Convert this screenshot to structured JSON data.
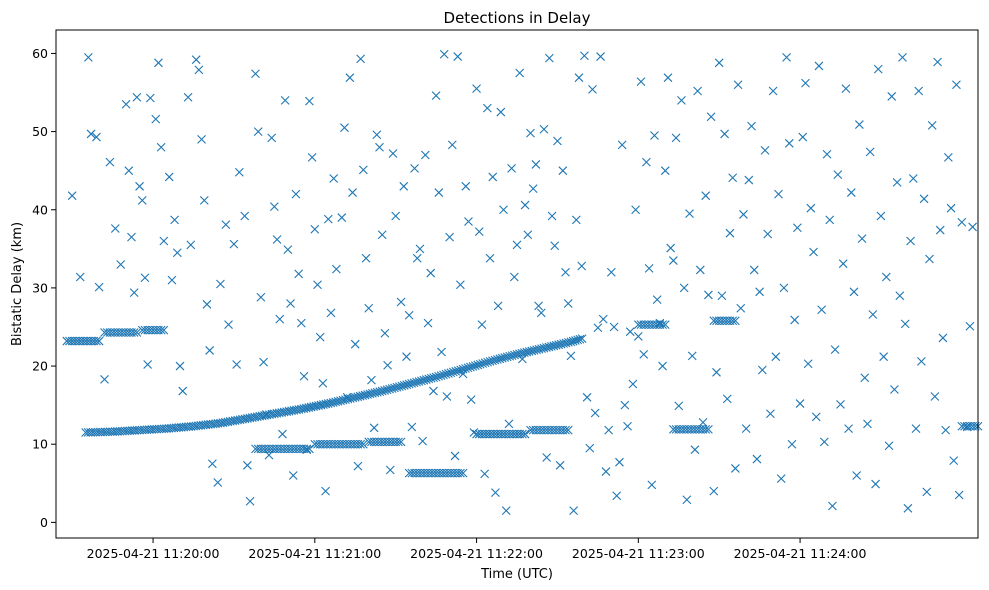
{
  "chart_data": {
    "type": "scatter",
    "title": "Detections in Delay",
    "xlabel": "Time (UTC)",
    "ylabel": "Bistatic Delay (km)",
    "marker": "x",
    "color": "#1f77b4",
    "grid": false,
    "x_unit": "seconds after 2025-04-21 11:19:00 UTC",
    "xlim": [
      24,
      366
    ],
    "ylim": [
      -2,
      63
    ],
    "x_ticks": [
      {
        "value": 60,
        "label": "2025-04-21 11:20:00"
      },
      {
        "value": 120,
        "label": "2025-04-21 11:21:00"
      },
      {
        "value": 180,
        "label": "2025-04-21 11:22:00"
      },
      {
        "value": 240,
        "label": "2025-04-21 11:23:00"
      },
      {
        "value": 300,
        "label": "2025-04-21 11:24:00"
      }
    ],
    "y_ticks": [
      0,
      10,
      20,
      30,
      40,
      50,
      60
    ],
    "track": {
      "description": "dense detection track",
      "points": [
        [
          35,
          11.5
        ],
        [
          45,
          11.6
        ],
        [
          55,
          11.8
        ],
        [
          65,
          12.0
        ],
        [
          75,
          12.3
        ],
        [
          85,
          12.7
        ],
        [
          95,
          13.3
        ],
        [
          105,
          13.9
        ],
        [
          115,
          14.5
        ],
        [
          125,
          15.2
        ],
        [
          135,
          16.0
        ],
        [
          145,
          16.8
        ],
        [
          155,
          17.7
        ],
        [
          165,
          18.6
        ],
        [
          175,
          19.6
        ],
        [
          185,
          20.6
        ],
        [
          195,
          21.5
        ],
        [
          205,
          22.3
        ],
        [
          215,
          23.1
        ],
        [
          220,
          23.6
        ]
      ]
    },
    "track_segments": [
      {
        "x": [
          28,
          40
        ],
        "y": 23.2
      },
      {
        "x": [
          42,
          54
        ],
        "y": 24.3
      },
      {
        "x": [
          56,
          64
        ],
        "y": 24.6
      },
      {
        "x": [
          98,
          118
        ],
        "y": 9.4
      },
      {
        "x": [
          120,
          138
        ],
        "y": 10.0
      },
      {
        "x": [
          140,
          152
        ],
        "y": 10.3
      },
      {
        "x": [
          155,
          175
        ],
        "y": 6.3
      },
      {
        "x": [
          180,
          198
        ],
        "y": 11.3
      },
      {
        "x": [
          200,
          214
        ],
        "y": 11.8
      },
      {
        "x": [
          240,
          250
        ],
        "y": 25.3
      },
      {
        "x": [
          253,
          266
        ],
        "y": 11.9
      },
      {
        "x": [
          268,
          276
        ],
        "y": 25.8
      },
      {
        "x": [
          360,
          366
        ],
        "y": 12.3
      }
    ],
    "scatter_points": [
      [
        30,
        41.8
      ],
      [
        33,
        31.4
      ],
      [
        36,
        59.5
      ],
      [
        37,
        49.7
      ],
      [
        39,
        49.3
      ],
      [
        40,
        30.1
      ],
      [
        42,
        18.3
      ],
      [
        44,
        46.1
      ],
      [
        46,
        37.6
      ],
      [
        48,
        33.0
      ],
      [
        50,
        53.5
      ],
      [
        51,
        45.0
      ],
      [
        52,
        36.5
      ],
      [
        53,
        29.4
      ],
      [
        54,
        54.4
      ],
      [
        55,
        43.0
      ],
      [
        56,
        41.2
      ],
      [
        57,
        31.3
      ],
      [
        58,
        20.2
      ],
      [
        59,
        54.3
      ],
      [
        61,
        51.6
      ],
      [
        62,
        58.8
      ],
      [
        63,
        48.0
      ],
      [
        64,
        36.0
      ],
      [
        66,
        44.2
      ],
      [
        67,
        31.0
      ],
      [
        68,
        38.7
      ],
      [
        69,
        34.5
      ],
      [
        70,
        20.0
      ],
      [
        71,
        16.8
      ],
      [
        73,
        54.4
      ],
      [
        74,
        35.5
      ],
      [
        76,
        59.2
      ],
      [
        77,
        57.9
      ],
      [
        78,
        49.0
      ],
      [
        79,
        41.2
      ],
      [
        80,
        27.9
      ],
      [
        81,
        22.0
      ],
      [
        82,
        7.5
      ],
      [
        84,
        5.1
      ],
      [
        85,
        30.5
      ],
      [
        87,
        38.1
      ],
      [
        88,
        25.3
      ],
      [
        90,
        35.6
      ],
      [
        91,
        20.2
      ],
      [
        92,
        44.8
      ],
      [
        94,
        39.2
      ],
      [
        95,
        7.3
      ],
      [
        96,
        2.7
      ],
      [
        98,
        57.4
      ],
      [
        99,
        50.0
      ],
      [
        100,
        28.8
      ],
      [
        101,
        20.5
      ],
      [
        102,
        13.8
      ],
      [
        103,
        8.6
      ],
      [
        104,
        49.2
      ],
      [
        105,
        40.4
      ],
      [
        106,
        36.2
      ],
      [
        107,
        26.0
      ],
      [
        108,
        11.3
      ],
      [
        109,
        54.0
      ],
      [
        110,
        34.9
      ],
      [
        111,
        28.0
      ],
      [
        112,
        6.0
      ],
      [
        113,
        42.0
      ],
      [
        114,
        31.8
      ],
      [
        115,
        25.5
      ],
      [
        116,
        18.7
      ],
      [
        117,
        9.3
      ],
      [
        118,
        53.9
      ],
      [
        119,
        46.7
      ],
      [
        120,
        37.5
      ],
      [
        121,
        30.4
      ],
      [
        122,
        23.7
      ],
      [
        123,
        17.8
      ],
      [
        124,
        4.0
      ],
      [
        125,
        38.8
      ],
      [
        126,
        26.8
      ],
      [
        127,
        44.0
      ],
      [
        128,
        32.4
      ],
      [
        130,
        39.0
      ],
      [
        131,
        50.5
      ],
      [
        132,
        16.0
      ],
      [
        133,
        56.9
      ],
      [
        134,
        42.2
      ],
      [
        135,
        22.8
      ],
      [
        136,
        7.2
      ],
      [
        137,
        59.3
      ],
      [
        138,
        45.1
      ],
      [
        139,
        33.8
      ],
      [
        140,
        27.4
      ],
      [
        141,
        18.2
      ],
      [
        142,
        12.1
      ],
      [
        143,
        49.6
      ],
      [
        144,
        48.0
      ],
      [
        145,
        36.8
      ],
      [
        146,
        24.2
      ],
      [
        147,
        20.1
      ],
      [
        148,
        6.7
      ],
      [
        149,
        47.2
      ],
      [
        150,
        39.2
      ],
      [
        152,
        28.2
      ],
      [
        153,
        43.0
      ],
      [
        154,
        21.2
      ],
      [
        155,
        26.5
      ],
      [
        156,
        12.2
      ],
      [
        157,
        45.3
      ],
      [
        158,
        33.8
      ],
      [
        159,
        35.0
      ],
      [
        160,
        10.4
      ],
      [
        161,
        47.0
      ],
      [
        162,
        25.5
      ],
      [
        163,
        31.9
      ],
      [
        164,
        16.8
      ],
      [
        165,
        54.6
      ],
      [
        166,
        42.2
      ],
      [
        167,
        21.8
      ],
      [
        168,
        59.9
      ],
      [
        169,
        16.1
      ],
      [
        170,
        36.5
      ],
      [
        171,
        48.3
      ],
      [
        172,
        8.5
      ],
      [
        173,
        59.6
      ],
      [
        174,
        30.4
      ],
      [
        175,
        19.0
      ],
      [
        176,
        43.0
      ],
      [
        177,
        38.5
      ],
      [
        178,
        15.7
      ],
      [
        179,
        11.5
      ],
      [
        180,
        55.5
      ],
      [
        181,
        37.2
      ],
      [
        182,
        25.3
      ],
      [
        183,
        6.2
      ],
      [
        184,
        53.0
      ],
      [
        185,
        33.8
      ],
      [
        186,
        44.2
      ],
      [
        187,
        3.8
      ],
      [
        188,
        27.7
      ],
      [
        189,
        52.5
      ],
      [
        190,
        40.0
      ],
      [
        191,
        1.5
      ],
      [
        192,
        12.6
      ],
      [
        193,
        45.3
      ],
      [
        194,
        31.4
      ],
      [
        195,
        35.5
      ],
      [
        196,
        57.5
      ],
      [
        197,
        20.9
      ],
      [
        198,
        40.6
      ],
      [
        199,
        36.8
      ],
      [
        200,
        49.8
      ],
      [
        201,
        42.7
      ],
      [
        202,
        45.8
      ],
      [
        203,
        27.7
      ],
      [
        204,
        26.8
      ],
      [
        205,
        50.3
      ],
      [
        206,
        8.3
      ],
      [
        207,
        59.4
      ],
      [
        208,
        39.2
      ],
      [
        209,
        35.4
      ],
      [
        210,
        48.8
      ],
      [
        211,
        7.3
      ],
      [
        212,
        45.0
      ],
      [
        213,
        32.0
      ],
      [
        214,
        28.0
      ],
      [
        215,
        21.3
      ],
      [
        216,
        1.5
      ],
      [
        217,
        38.7
      ],
      [
        218,
        56.9
      ],
      [
        219,
        32.8
      ],
      [
        220,
        59.7
      ],
      [
        221,
        16.0
      ],
      [
        222,
        9.5
      ],
      [
        223,
        55.4
      ],
      [
        224,
        14.0
      ],
      [
        225,
        24.9
      ],
      [
        226,
        59.6
      ],
      [
        227,
        26.0
      ],
      [
        228,
        6.5
      ],
      [
        229,
        11.8
      ],
      [
        230,
        32.0
      ],
      [
        231,
        25.0
      ],
      [
        232,
        3.4
      ],
      [
        233,
        7.7
      ],
      [
        234,
        48.3
      ],
      [
        235,
        15.0
      ],
      [
        236,
        12.3
      ],
      [
        237,
        24.4
      ],
      [
        238,
        17.7
      ],
      [
        239,
        40.0
      ],
      [
        240,
        23.8
      ],
      [
        241,
        56.4
      ],
      [
        242,
        21.5
      ],
      [
        243,
        46.1
      ],
      [
        244,
        32.5
      ],
      [
        245,
        4.8
      ],
      [
        246,
        49.5
      ],
      [
        247,
        28.5
      ],
      [
        248,
        25.5
      ],
      [
        249,
        20.0
      ],
      [
        250,
        45.0
      ],
      [
        251,
        56.9
      ],
      [
        252,
        35.1
      ],
      [
        253,
        33.5
      ],
      [
        254,
        49.2
      ],
      [
        255,
        14.9
      ],
      [
        256,
        54.0
      ],
      [
        257,
        30.0
      ],
      [
        258,
        2.9
      ],
      [
        259,
        39.5
      ],
      [
        260,
        21.3
      ],
      [
        261,
        9.3
      ],
      [
        262,
        55.2
      ],
      [
        263,
        32.3
      ],
      [
        264,
        12.8
      ],
      [
        265,
        41.8
      ],
      [
        266,
        29.1
      ],
      [
        267,
        51.9
      ],
      [
        268,
        4.0
      ],
      [
        269,
        19.2
      ],
      [
        270,
        58.8
      ],
      [
        271,
        29.0
      ],
      [
        272,
        49.7
      ],
      [
        273,
        15.8
      ],
      [
        274,
        37.0
      ],
      [
        275,
        44.1
      ],
      [
        276,
        6.9
      ],
      [
        277,
        56.0
      ],
      [
        278,
        27.4
      ],
      [
        279,
        39.4
      ],
      [
        280,
        12.0
      ],
      [
        281,
        43.8
      ],
      [
        282,
        50.7
      ],
      [
        283,
        32.3
      ],
      [
        284,
        8.1
      ],
      [
        285,
        29.5
      ],
      [
        286,
        19.5
      ],
      [
        287,
        47.6
      ],
      [
        288,
        36.9
      ],
      [
        289,
        13.9
      ],
      [
        290,
        55.2
      ],
      [
        291,
        21.2
      ],
      [
        292,
        42.0
      ],
      [
        293,
        5.6
      ],
      [
        294,
        30.0
      ],
      [
        295,
        59.5
      ],
      [
        296,
        48.5
      ],
      [
        297,
        10.0
      ],
      [
        298,
        25.9
      ],
      [
        299,
        37.7
      ],
      [
        300,
        15.2
      ],
      [
        301,
        49.3
      ],
      [
        302,
        56.2
      ],
      [
        303,
        20.3
      ],
      [
        304,
        40.2
      ],
      [
        305,
        34.6
      ],
      [
        306,
        13.5
      ],
      [
        307,
        58.4
      ],
      [
        308,
        27.2
      ],
      [
        309,
        10.3
      ],
      [
        310,
        47.1
      ],
      [
        311,
        38.7
      ],
      [
        312,
        2.1
      ],
      [
        313,
        22.1
      ],
      [
        314,
        44.5
      ],
      [
        315,
        15.1
      ],
      [
        316,
        33.1
      ],
      [
        317,
        55.5
      ],
      [
        318,
        12.0
      ],
      [
        319,
        42.2
      ],
      [
        320,
        29.5
      ],
      [
        321,
        6.0
      ],
      [
        322,
        50.9
      ],
      [
        323,
        36.3
      ],
      [
        324,
        18.5
      ],
      [
        325,
        12.6
      ],
      [
        326,
        47.4
      ],
      [
        327,
        26.6
      ],
      [
        328,
        4.9
      ],
      [
        329,
        58.0
      ],
      [
        330,
        39.2
      ],
      [
        331,
        21.2
      ],
      [
        332,
        31.4
      ],
      [
        333,
        9.8
      ],
      [
        334,
        54.5
      ],
      [
        335,
        17.0
      ],
      [
        336,
        43.5
      ],
      [
        337,
        29.0
      ],
      [
        338,
        59.5
      ],
      [
        339,
        25.4
      ],
      [
        340,
        1.8
      ],
      [
        341,
        36.0
      ],
      [
        342,
        44.0
      ],
      [
        343,
        12.0
      ],
      [
        344,
        55.2
      ],
      [
        345,
        20.6
      ],
      [
        346,
        41.4
      ],
      [
        347,
        3.9
      ],
      [
        348,
        33.7
      ],
      [
        349,
        50.8
      ],
      [
        350,
        16.1
      ],
      [
        351,
        58.9
      ],
      [
        352,
        37.4
      ],
      [
        353,
        23.6
      ],
      [
        354,
        11.8
      ],
      [
        355,
        46.7
      ],
      [
        356,
        40.2
      ],
      [
        357,
        7.9
      ],
      [
        358,
        56.0
      ],
      [
        359,
        3.5
      ],
      [
        360,
        38.4
      ],
      [
        362,
        12.2
      ],
      [
        363,
        25.1
      ],
      [
        364,
        37.8
      ]
    ]
  }
}
